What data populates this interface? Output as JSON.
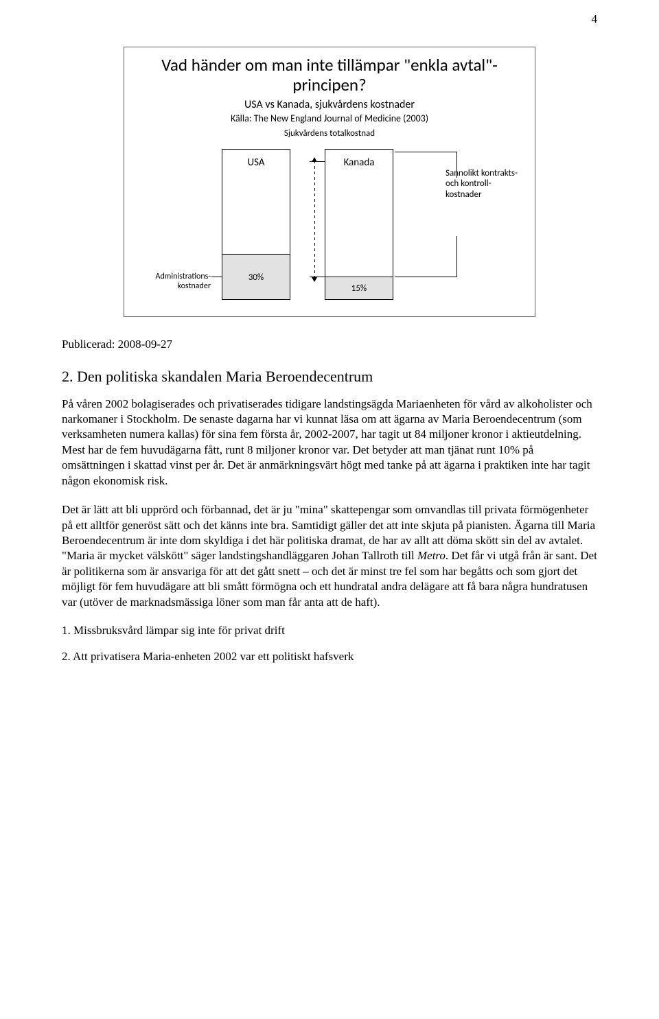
{
  "page_number": "4",
  "figure": {
    "title": "Vad händer om man inte tillämpar \"enkla avtal\"-principen?",
    "subtitle": "USA vs Kanada, sjukvårdens kostnader",
    "source": "Källa: The New England Journal of Medicine (2003)",
    "top_label": "Sjukvårdens totalkostnad",
    "bars": {
      "usa": {
        "name": "USA",
        "admin_pct": "30%"
      },
      "canada": {
        "name": "Kanada",
        "admin_pct": "15%"
      }
    },
    "left_label": "Administrations-kostnader",
    "right_label": "Sannolikt kontrakts- och kontroll-kostnader",
    "colors": {
      "border": "#606060",
      "bar_border": "#000000",
      "shaded": "#e2e2e2",
      "background": "#ffffff"
    }
  },
  "published_label": "Publicerad: 2008-09-27",
  "heading": "2. Den politiska skandalen Maria Beroendecentrum",
  "para1_a": "På våren 2002 bolagiserades och privatiserades tidigare landstingsägda Mariaenheten för vård av alkoholister och narkomaner i Stockholm. De senaste dagarna har vi kunnat läsa om att ägarna av Maria Beroendecentrum (som verksamheten numera kallas) för sina fem första år, 2002-2007, har tagit ut 84 miljoner kronor i aktieutdelning. Mest har de fem huvudägarna fått, runt 8 miljoner kronor var. Det betyder att man tjänat runt 10% på omsättningen i skattad vinst per år. Det är anmärkningsvärt högt med tanke på att ägarna i praktiken inte har tagit någon ekonomisk risk.",
  "para2_a": "Det är lätt att bli upprörd och förbannad, det är ju \"mina\" skattepengar som omvandlas till privata förmögenheter på ett alltför generöst sätt och det känns inte bra. Samtidigt gäller det att inte skjuta på pianisten. Ägarna till Maria Beroendecentrum är inte dom skyldiga i det här politiska dramat, de har av allt att döma skött sin del av avtalet. \"Maria är mycket välskött\" säger landstingshandläggaren Johan Tallroth till ",
  "para2_italic": "Metro",
  "para2_b": ". Det får vi utgå från är sant. Det är politikerna som är ansvariga för att det gått snett – och det är minst tre fel som har begåtts och som gjort det möjligt för fem huvudägare att bli smått förmögna och ett hundratal andra delägare att få bara några hundratusen var (utöver de marknadsmässiga löner som man får anta att de haft).",
  "list1": "1. Missbruksvård lämpar sig inte för privat drift",
  "list2": "2. Att privatisera Maria-enheten 2002 var ett politiskt hafsverk"
}
